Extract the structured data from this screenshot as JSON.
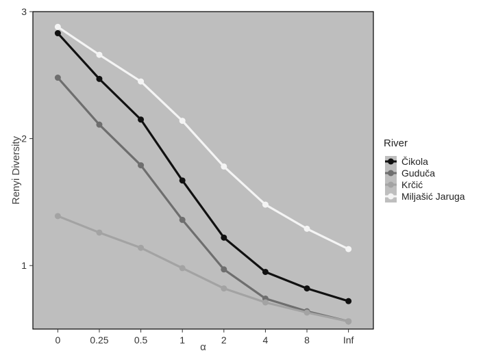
{
  "chart_data": {
    "type": "line",
    "title": "",
    "xlabel": "α",
    "ylabel": "Renyi Diversity",
    "categories": [
      "0",
      "0.25",
      "0.5",
      "1",
      "2",
      "4",
      "8",
      "Inf"
    ],
    "yticks": [
      1,
      2,
      3
    ],
    "ylim": [
      0.5,
      3.0
    ],
    "grid": false,
    "background_color": "#bebebe",
    "legend": {
      "title": "River",
      "position": "right"
    },
    "series": [
      {
        "name": "Čikola",
        "color": "#111111",
        "values": [
          2.83,
          2.47,
          2.15,
          1.67,
          1.22,
          0.95,
          0.82,
          0.72
        ]
      },
      {
        "name": "Guduča",
        "color": "#6e6e6e",
        "values": [
          2.48,
          2.11,
          1.79,
          1.36,
          0.97,
          0.74,
          0.64,
          0.56
        ]
      },
      {
        "name": "Krčić",
        "color": "#a3a3a3",
        "values": [
          1.39,
          1.26,
          1.14,
          0.98,
          0.82,
          0.71,
          0.63,
          0.56
        ]
      },
      {
        "name": "Miljašić Jaruga",
        "color": "#f4f4f4",
        "values": [
          2.88,
          2.66,
          2.45,
          2.14,
          1.78,
          1.48,
          1.29,
          1.13
        ]
      }
    ]
  }
}
